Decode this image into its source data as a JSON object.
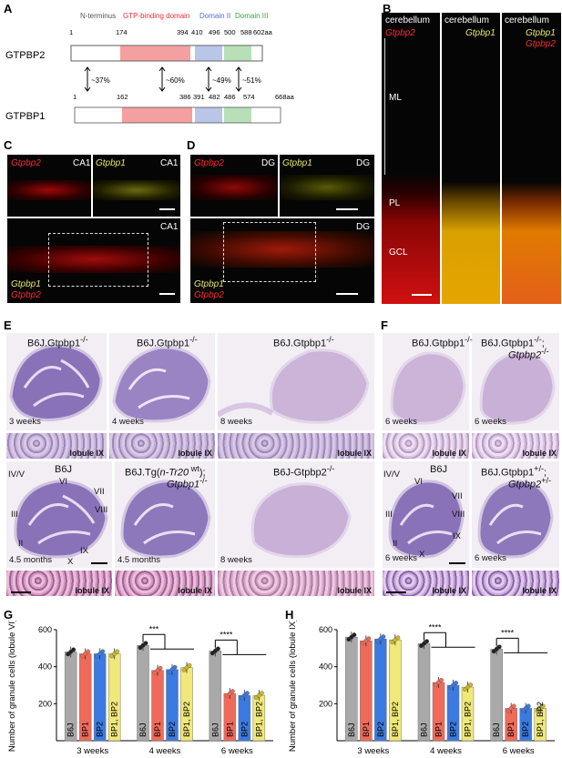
{
  "panels": {
    "A": "A",
    "B": "B",
    "C": "C",
    "D": "D",
    "E": "E",
    "F": "F",
    "G": "G",
    "H": "H"
  },
  "domain_map": {
    "n_terminus": "N-terminus",
    "gtp_domain": "GTP-binding domain",
    "domain2": "Domain II",
    "domain3": "Domain III",
    "colors": {
      "gtp": "#f4a0a0",
      "d2": "#b9c6e8",
      "d3": "#b8e0b8",
      "gtp_text": "#e0312f",
      "d2_text": "#4f6fd0",
      "d3_text": "#3aa83a"
    },
    "gtpbp2": {
      "name": "GTPBP2",
      "positions": [
        "1",
        "174",
        "394",
        "410",
        "496",
        "500",
        "588",
        "602aa"
      ]
    },
    "gtpbp1": {
      "name": "GTPBP1",
      "positions": [
        "1",
        "162",
        "386",
        "391",
        "482",
        "486",
        "574",
        "668aa"
      ]
    },
    "identity": [
      "~37%",
      "~60%",
      "~49%",
      "~51%"
    ]
  },
  "panel_b": {
    "col1": {
      "title": "cerebellum",
      "gene": "Gtpbp2"
    },
    "col2": {
      "title": "cerebellum",
      "gene": "Gtpbp1"
    },
    "col3": {
      "title": "cerebellum",
      "gene_a": "Gtpbp1",
      "gene_b": "Gtpbp2"
    },
    "layers": {
      "ml": "ML",
      "pl": "PL",
      "gcl": "GCL"
    }
  },
  "panel_c": {
    "gene_red": "Gtpbp2",
    "gene_yel": "Gtpbp1",
    "region": "CA1"
  },
  "panel_d": {
    "gene_red": "Gtpbp2",
    "gene_yel": "Gtpbp1",
    "region": "DG"
  },
  "panel_e": {
    "top": [
      {
        "genotype": "B6J.Gtpbp1",
        "sup": "-/-",
        "age": "3 weeks"
      },
      {
        "genotype": "B6J.Gtpbp1",
        "sup": "-/-",
        "age": "4 weeks"
      },
      {
        "genotype": "B6J.Gtpbp1",
        "sup": "-/-",
        "age": "8 weeks"
      }
    ],
    "bottom": [
      {
        "genotype": "B6J",
        "sup": "",
        "age": "4.5 months"
      },
      {
        "genotype_a": "B6J.Tg(",
        "genotype_b": "n-Tr20",
        "genotype_c": " wt",
        "genotype_d": ");",
        "genotype_e": "Gtpbp1",
        "sup": "-/-",
        "age": "4.5 months"
      },
      {
        "genotype": "B6J-Gtpbp2",
        "sup": "-/-",
        "age": "8 weeks"
      }
    ],
    "lobule": "lobule IX",
    "lobes": {
      "iv_v": "IV/V",
      "vi": "VI",
      "vii": "VII",
      "viii": "VIII",
      "iii": "III",
      "ii": "II",
      "ix": "IX",
      "x": "X"
    }
  },
  "panel_f": {
    "top": [
      {
        "genotype": "B6J.Gtpbp1",
        "sup": "-/-",
        "age": "6 weeks"
      },
      {
        "genotype_a": "B6J.Gtpbp1",
        "sup_a": "-/-",
        "genotype_b": "Gtpbp2",
        "sup_b": "-/-",
        "age": "6 weeks"
      }
    ],
    "bottom": [
      {
        "genotype": "B6J",
        "age": "6 weeks"
      },
      {
        "genotype_a": "B6J.Gtpbp1",
        "sup_a": "+/-",
        "genotype_b": "Gtpbp2",
        "sup_b": "+/-",
        "age": "6 weeks"
      }
    ],
    "lobule": "lobule IX"
  },
  "chart_data": [
    {
      "type": "bar",
      "panel": "G",
      "ylabel": "Number of granule cells (lobule VI)",
      "ylim": [
        0,
        600
      ],
      "yticks": [
        200,
        400,
        600
      ],
      "categories": [
        "3 weeks",
        "4 weeks",
        "6 weeks"
      ],
      "series": [
        {
          "name": "B6J",
          "values": [
            480,
            515,
            485
          ],
          "color": "#a9a9a9"
        },
        {
          "name": "BP1",
          "values": [
            470,
            380,
            255
          ],
          "color": "#f06a5a"
        },
        {
          "name": "BP2",
          "values": [
            470,
            385,
            245
          ],
          "color": "#3b7ae0"
        },
        {
          "name": "BP1, BP2",
          "values": [
            470,
            395,
            245
          ],
          "color": "#f0e878"
        }
      ],
      "significance": [
        {
          "group": "4 weeks",
          "label": "***"
        },
        {
          "group": "6 weeks",
          "label": "****"
        }
      ]
    },
    {
      "type": "bar",
      "panel": "H",
      "ylabel": "Number of granule cells (lobule IX)",
      "ylim": [
        0,
        600
      ],
      "yticks": [
        200,
        400,
        600
      ],
      "categories": [
        "3 weeks",
        "4 weeks",
        "6 weeks"
      ],
      "series": [
        {
          "name": "B6J",
          "values": [
            560,
            525,
            495
          ],
          "color": "#a9a9a9"
        },
        {
          "name": "BP1",
          "values": [
            540,
            315,
            175
          ],
          "color": "#f06a5a"
        },
        {
          "name": "BP2",
          "values": [
            550,
            300,
            175
          ],
          "color": "#3b7ae0"
        },
        {
          "name": "BP1, BP2",
          "values": [
            545,
            290,
            175
          ],
          "color": "#f0e878"
        }
      ],
      "significance": [
        {
          "group": "4 weeks",
          "label": "****"
        },
        {
          "group": "6 weeks",
          "label": "****"
        }
      ]
    }
  ]
}
